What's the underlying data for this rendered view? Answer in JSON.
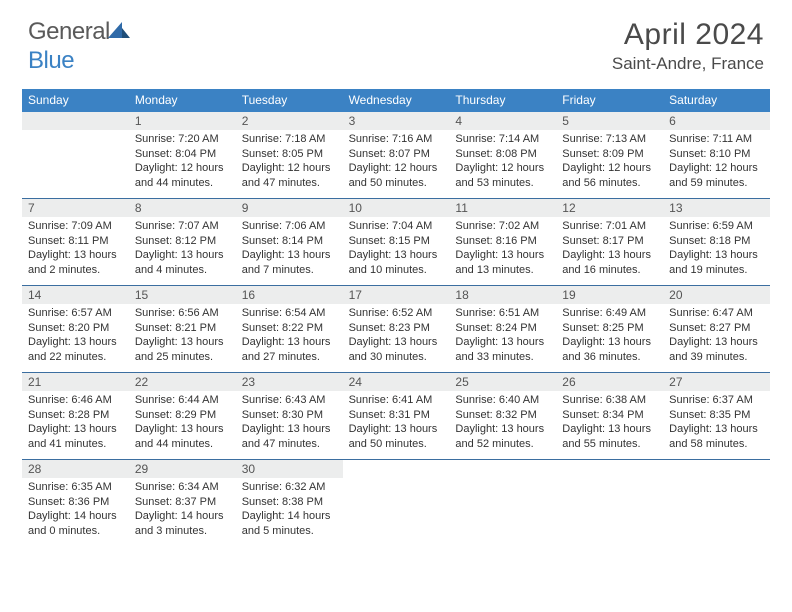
{
  "brand": {
    "name_left": "General",
    "name_right": "Blue"
  },
  "title": "April 2024",
  "location": "Saint-Andre, France",
  "colors": {
    "header_bg": "#3b82c4",
    "header_text": "#ffffff",
    "daynum_bg": "#eceded",
    "week_border": "#3b6ea0",
    "text": "#333333",
    "logo_gray": "#5a5a5a",
    "logo_blue": "#3b82c4"
  },
  "day_names": [
    "Sunday",
    "Monday",
    "Tuesday",
    "Wednesday",
    "Thursday",
    "Friday",
    "Saturday"
  ],
  "weeks": [
    [
      {
        "day": "",
        "lines": []
      },
      {
        "day": "1",
        "lines": [
          "Sunrise: 7:20 AM",
          "Sunset: 8:04 PM",
          "Daylight: 12 hours and 44 minutes."
        ]
      },
      {
        "day": "2",
        "lines": [
          "Sunrise: 7:18 AM",
          "Sunset: 8:05 PM",
          "Daylight: 12 hours and 47 minutes."
        ]
      },
      {
        "day": "3",
        "lines": [
          "Sunrise: 7:16 AM",
          "Sunset: 8:07 PM",
          "Daylight: 12 hours and 50 minutes."
        ]
      },
      {
        "day": "4",
        "lines": [
          "Sunrise: 7:14 AM",
          "Sunset: 8:08 PM",
          "Daylight: 12 hours and 53 minutes."
        ]
      },
      {
        "day": "5",
        "lines": [
          "Sunrise: 7:13 AM",
          "Sunset: 8:09 PM",
          "Daylight: 12 hours and 56 minutes."
        ]
      },
      {
        "day": "6",
        "lines": [
          "Sunrise: 7:11 AM",
          "Sunset: 8:10 PM",
          "Daylight: 12 hours and 59 minutes."
        ]
      }
    ],
    [
      {
        "day": "7",
        "lines": [
          "Sunrise: 7:09 AM",
          "Sunset: 8:11 PM",
          "Daylight: 13 hours and 2 minutes."
        ]
      },
      {
        "day": "8",
        "lines": [
          "Sunrise: 7:07 AM",
          "Sunset: 8:12 PM",
          "Daylight: 13 hours and 4 minutes."
        ]
      },
      {
        "day": "9",
        "lines": [
          "Sunrise: 7:06 AM",
          "Sunset: 8:14 PM",
          "Daylight: 13 hours and 7 minutes."
        ]
      },
      {
        "day": "10",
        "lines": [
          "Sunrise: 7:04 AM",
          "Sunset: 8:15 PM",
          "Daylight: 13 hours and 10 minutes."
        ]
      },
      {
        "day": "11",
        "lines": [
          "Sunrise: 7:02 AM",
          "Sunset: 8:16 PM",
          "Daylight: 13 hours and 13 minutes."
        ]
      },
      {
        "day": "12",
        "lines": [
          "Sunrise: 7:01 AM",
          "Sunset: 8:17 PM",
          "Daylight: 13 hours and 16 minutes."
        ]
      },
      {
        "day": "13",
        "lines": [
          "Sunrise: 6:59 AM",
          "Sunset: 8:18 PM",
          "Daylight: 13 hours and 19 minutes."
        ]
      }
    ],
    [
      {
        "day": "14",
        "lines": [
          "Sunrise: 6:57 AM",
          "Sunset: 8:20 PM",
          "Daylight: 13 hours and 22 minutes."
        ]
      },
      {
        "day": "15",
        "lines": [
          "Sunrise: 6:56 AM",
          "Sunset: 8:21 PM",
          "Daylight: 13 hours and 25 minutes."
        ]
      },
      {
        "day": "16",
        "lines": [
          "Sunrise: 6:54 AM",
          "Sunset: 8:22 PM",
          "Daylight: 13 hours and 27 minutes."
        ]
      },
      {
        "day": "17",
        "lines": [
          "Sunrise: 6:52 AM",
          "Sunset: 8:23 PM",
          "Daylight: 13 hours and 30 minutes."
        ]
      },
      {
        "day": "18",
        "lines": [
          "Sunrise: 6:51 AM",
          "Sunset: 8:24 PM",
          "Daylight: 13 hours and 33 minutes."
        ]
      },
      {
        "day": "19",
        "lines": [
          "Sunrise: 6:49 AM",
          "Sunset: 8:25 PM",
          "Daylight: 13 hours and 36 minutes."
        ]
      },
      {
        "day": "20",
        "lines": [
          "Sunrise: 6:47 AM",
          "Sunset: 8:27 PM",
          "Daylight: 13 hours and 39 minutes."
        ]
      }
    ],
    [
      {
        "day": "21",
        "lines": [
          "Sunrise: 6:46 AM",
          "Sunset: 8:28 PM",
          "Daylight: 13 hours and 41 minutes."
        ]
      },
      {
        "day": "22",
        "lines": [
          "Sunrise: 6:44 AM",
          "Sunset: 8:29 PM",
          "Daylight: 13 hours and 44 minutes."
        ]
      },
      {
        "day": "23",
        "lines": [
          "Sunrise: 6:43 AM",
          "Sunset: 8:30 PM",
          "Daylight: 13 hours and 47 minutes."
        ]
      },
      {
        "day": "24",
        "lines": [
          "Sunrise: 6:41 AM",
          "Sunset: 8:31 PM",
          "Daylight: 13 hours and 50 minutes."
        ]
      },
      {
        "day": "25",
        "lines": [
          "Sunrise: 6:40 AM",
          "Sunset: 8:32 PM",
          "Daylight: 13 hours and 52 minutes."
        ]
      },
      {
        "day": "26",
        "lines": [
          "Sunrise: 6:38 AM",
          "Sunset: 8:34 PM",
          "Daylight: 13 hours and 55 minutes."
        ]
      },
      {
        "day": "27",
        "lines": [
          "Sunrise: 6:37 AM",
          "Sunset: 8:35 PM",
          "Daylight: 13 hours and 58 minutes."
        ]
      }
    ],
    [
      {
        "day": "28",
        "lines": [
          "Sunrise: 6:35 AM",
          "Sunset: 8:36 PM",
          "Daylight: 14 hours and 0 minutes."
        ]
      },
      {
        "day": "29",
        "lines": [
          "Sunrise: 6:34 AM",
          "Sunset: 8:37 PM",
          "Daylight: 14 hours and 3 minutes."
        ]
      },
      {
        "day": "30",
        "lines": [
          "Sunrise: 6:32 AM",
          "Sunset: 8:38 PM",
          "Daylight: 14 hours and 5 minutes."
        ]
      },
      {
        "day": "",
        "lines": [],
        "trailing": true
      },
      {
        "day": "",
        "lines": [],
        "trailing": true
      },
      {
        "day": "",
        "lines": [],
        "trailing": true
      },
      {
        "day": "",
        "lines": [],
        "trailing": true
      }
    ]
  ]
}
